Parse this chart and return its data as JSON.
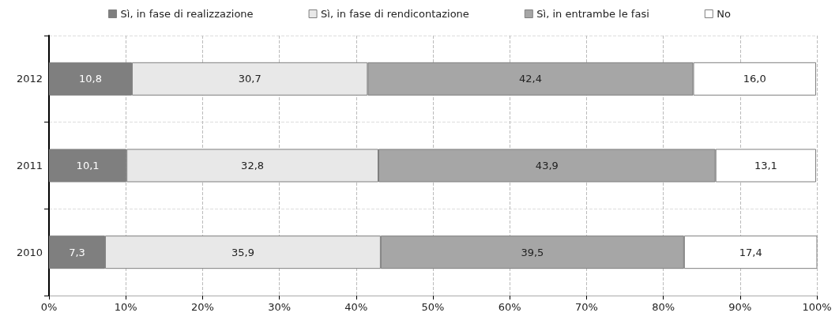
{
  "chart_data": {
    "type": "bar",
    "orientation": "horizontal",
    "stacked": true,
    "categories": [
      "2012",
      "2011",
      "2010"
    ],
    "series": [
      {
        "name": "Sì, in fase di realizzazione",
        "color": "#7f7f7f",
        "values": [
          10.8,
          10.1,
          7.3
        ],
        "value_labels": [
          "10,8",
          "10,1",
          "7,3"
        ]
      },
      {
        "name": "Sì, in fase di rendicontazione",
        "color": "#e8e8e8",
        "values": [
          30.7,
          32.8,
          35.9
        ],
        "value_labels": [
          "30,7",
          "32,8",
          "35,9"
        ]
      },
      {
        "name": "Sì, in entrambe le fasi",
        "color": "#a6a6a6",
        "values": [
          42.4,
          43.9,
          39.5
        ],
        "value_labels": [
          "42,4",
          "43,9",
          "39,5"
        ]
      },
      {
        "name": "No",
        "color": "#ffffff",
        "values": [
          16.0,
          13.1,
          17.4
        ],
        "value_labels": [
          "16,0",
          "13,1",
          "17,4"
        ]
      }
    ],
    "xlim": [
      0,
      100
    ],
    "xticks": [
      {
        "value": 0,
        "label": "0%"
      },
      {
        "value": 10,
        "label": "10%"
      },
      {
        "value": 20,
        "label": "20%"
      },
      {
        "value": 30,
        "label": "30%"
      },
      {
        "value": 40,
        "label": "40%"
      },
      {
        "value": 50,
        "label": "50%"
      },
      {
        "value": 60,
        "label": "60%"
      },
      {
        "value": 70,
        "label": "70%"
      },
      {
        "value": 80,
        "label": "80%"
      },
      {
        "value": 90,
        "label": "90%"
      },
      {
        "value": 100,
        "label": "100%"
      }
    ],
    "grid": true,
    "legend": "top"
  }
}
